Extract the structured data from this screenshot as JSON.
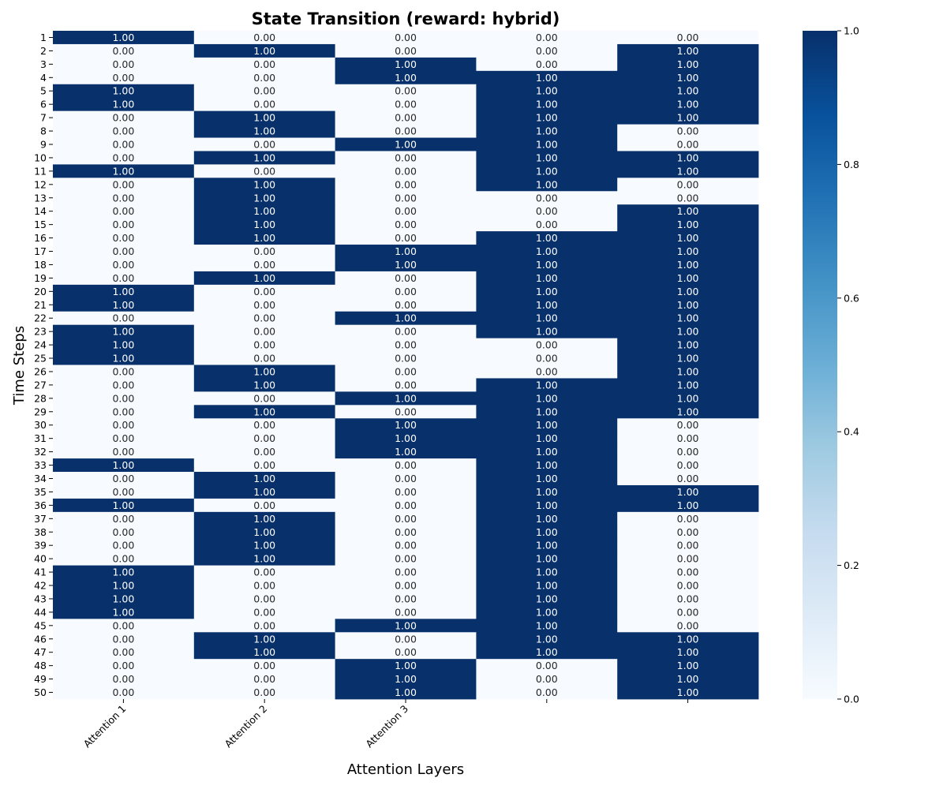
{
  "chart_data": {
    "type": "heatmap",
    "title": "State Transition (reward: hybrid)",
    "xlabel": "Attention Layers",
    "ylabel": "Time Steps",
    "x_tick_labels": [
      "Attention 1",
      "Attention 2",
      "Attention 3",
      "",
      ""
    ],
    "y_tick_labels": [
      "1",
      "2",
      "3",
      "4",
      "5",
      "6",
      "7",
      "8",
      "9",
      "10",
      "11",
      "12",
      "13",
      "14",
      "15",
      "16",
      "17",
      "18",
      "19",
      "20",
      "21",
      "22",
      "23",
      "24",
      "25",
      "26",
      "27",
      "28",
      "29",
      "30",
      "31",
      "32",
      "33",
      "34",
      "35",
      "36",
      "37",
      "38",
      "39",
      "40",
      "41",
      "42",
      "43",
      "44",
      "45",
      "46",
      "47",
      "48",
      "49",
      "50"
    ],
    "colormap": "Blues",
    "colorbar": {
      "min": 0.0,
      "max": 1.0,
      "ticks": [
        "0.0",
        "0.2",
        "0.4",
        "0.6",
        "0.8",
        "1.0"
      ]
    },
    "low_color": "#f7fbff",
    "high_color": "#08306b",
    "values": [
      [
        1,
        0,
        0,
        0,
        0
      ],
      [
        0,
        1,
        0,
        0,
        1
      ],
      [
        0,
        0,
        1,
        0,
        1
      ],
      [
        0,
        0,
        1,
        1,
        1
      ],
      [
        1,
        0,
        0,
        1,
        1
      ],
      [
        1,
        0,
        0,
        1,
        1
      ],
      [
        0,
        1,
        0,
        1,
        1
      ],
      [
        0,
        1,
        0,
        1,
        0
      ],
      [
        0,
        0,
        1,
        1,
        0
      ],
      [
        0,
        1,
        0,
        1,
        1
      ],
      [
        1,
        0,
        0,
        1,
        1
      ],
      [
        0,
        1,
        0,
        1,
        0
      ],
      [
        0,
        1,
        0,
        0,
        0
      ],
      [
        0,
        1,
        0,
        0,
        1
      ],
      [
        0,
        1,
        0,
        0,
        1
      ],
      [
        0,
        1,
        0,
        1,
        1
      ],
      [
        0,
        0,
        1,
        1,
        1
      ],
      [
        0,
        0,
        1,
        1,
        1
      ],
      [
        0,
        1,
        0,
        1,
        1
      ],
      [
        1,
        0,
        0,
        1,
        1
      ],
      [
        1,
        0,
        0,
        1,
        1
      ],
      [
        0,
        0,
        1,
        1,
        1
      ],
      [
        1,
        0,
        0,
        1,
        1
      ],
      [
        1,
        0,
        0,
        0,
        1
      ],
      [
        1,
        0,
        0,
        0,
        1
      ],
      [
        0,
        1,
        0,
        0,
        1
      ],
      [
        0,
        1,
        0,
        1,
        1
      ],
      [
        0,
        0,
        1,
        1,
        1
      ],
      [
        0,
        1,
        0,
        1,
        1
      ],
      [
        0,
        0,
        1,
        1,
        0
      ],
      [
        0,
        0,
        1,
        1,
        0
      ],
      [
        0,
        0,
        1,
        1,
        0
      ],
      [
        1,
        0,
        0,
        1,
        0
      ],
      [
        0,
        1,
        0,
        1,
        0
      ],
      [
        0,
        1,
        0,
        1,
        1
      ],
      [
        1,
        0,
        0,
        1,
        1
      ],
      [
        0,
        1,
        0,
        1,
        0
      ],
      [
        0,
        1,
        0,
        1,
        0
      ],
      [
        0,
        1,
        0,
        1,
        0
      ],
      [
        0,
        1,
        0,
        1,
        0
      ],
      [
        1,
        0,
        0,
        1,
        0
      ],
      [
        1,
        0,
        0,
        1,
        0
      ],
      [
        1,
        0,
        0,
        1,
        0
      ],
      [
        1,
        0,
        0,
        1,
        0
      ],
      [
        0,
        0,
        1,
        1,
        0
      ],
      [
        0,
        1,
        0,
        1,
        1
      ],
      [
        0,
        1,
        0,
        1,
        1
      ],
      [
        0,
        0,
        1,
        0,
        1
      ],
      [
        0,
        0,
        1,
        0,
        1
      ],
      [
        0,
        0,
        1,
        0,
        1
      ]
    ]
  }
}
